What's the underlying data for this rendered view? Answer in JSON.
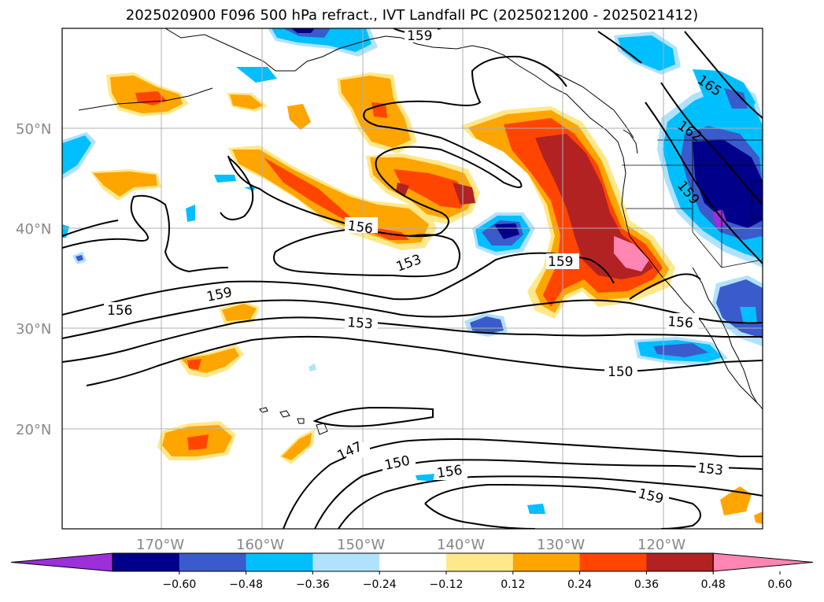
{
  "title": "2025020900 F096 500 hPa refract., IVT Landfall PC (2025021200 - 2025021412)",
  "lat_labels": [
    "50°N",
    "40°N",
    "30°N",
    "20°N"
  ],
  "lon_labels": [
    "170°W",
    "160°W",
    "150°W",
    "140°W",
    "130°W",
    "120°W"
  ],
  "contour_labels": [
    "159",
    "156",
    "153",
    "159",
    "156",
    "153",
    "159",
    "156",
    "150",
    "147",
    "150",
    "156",
    "153",
    "159",
    "165",
    "162",
    "159"
  ],
  "colorbar": {
    "ticks": [
      "−0.60",
      "−0.48",
      "−0.36",
      "−0.24",
      "−0.12",
      "0.12",
      "0.24",
      "0.36",
      "0.48",
      "0.60"
    ],
    "colors": [
      "#9b30d9",
      "#00008b",
      "#3a5bcc",
      "#00bfff",
      "#b0e2ff",
      "#ffffff",
      "#ffe88a",
      "#ffa500",
      "#ff4500",
      "#b22222",
      "#ff85b3"
    ]
  }
}
